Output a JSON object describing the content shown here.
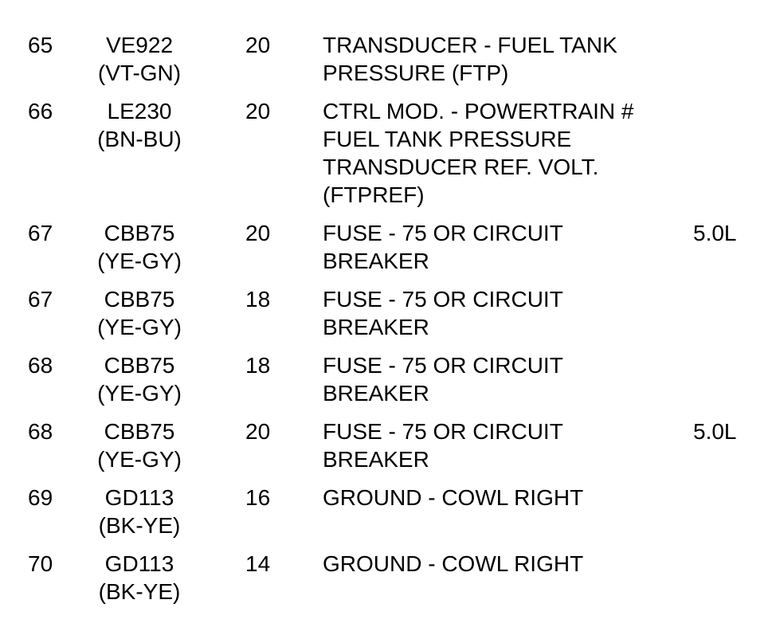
{
  "rows": [
    {
      "pin": "65",
      "circuit": "VE922",
      "color": "(VT-GN)",
      "gauge": "20",
      "description": [
        "TRANSDUCER - FUEL TANK",
        "PRESSURE (FTP)"
      ],
      "note": ""
    },
    {
      "pin": "66",
      "circuit": "LE230",
      "color": "(BN-BU)",
      "gauge": "20",
      "description": [
        "CTRL MOD. - POWERTRAIN #",
        "FUEL TANK PRESSURE",
        "TRANSDUCER REF. VOLT.",
        "(FTPREF)"
      ],
      "note": ""
    },
    {
      "pin": "67",
      "circuit": "CBB75",
      "color": "(YE-GY)",
      "gauge": "20",
      "description": [
        "FUSE - 75 OR CIRCUIT",
        "BREAKER"
      ],
      "note": "5.0L"
    },
    {
      "pin": "67",
      "circuit": "CBB75",
      "color": "(YE-GY)",
      "gauge": "18",
      "description": [
        "FUSE - 75 OR CIRCUIT",
        "BREAKER"
      ],
      "note": ""
    },
    {
      "pin": "68",
      "circuit": "CBB75",
      "color": "(YE-GY)",
      "gauge": "18",
      "description": [
        "FUSE - 75 OR CIRCUIT",
        "BREAKER"
      ],
      "note": ""
    },
    {
      "pin": "68",
      "circuit": "CBB75",
      "color": "(YE-GY)",
      "gauge": "20",
      "description": [
        "FUSE - 75 OR CIRCUIT",
        "BREAKER"
      ],
      "note": "5.0L"
    },
    {
      "pin": "69",
      "circuit": "GD113",
      "color": "(BK-YE)",
      "gauge": "16",
      "description": [
        "GROUND - COWL RIGHT"
      ],
      "note": ""
    },
    {
      "pin": "70",
      "circuit": "GD113",
      "color": "(BK-YE)",
      "gauge": "14",
      "description": [
        "GROUND - COWL RIGHT"
      ],
      "note": ""
    }
  ]
}
